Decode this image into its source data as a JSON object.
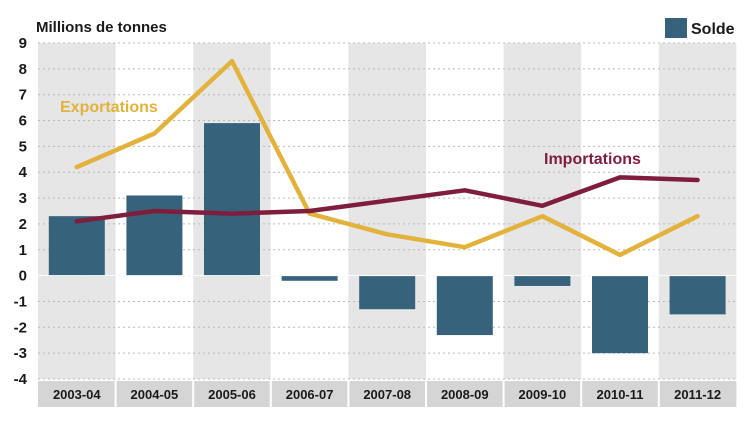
{
  "chart_data": {
    "type": "bar",
    "ylabel": "Millions de tonnes",
    "ylim": [
      -4,
      9
    ],
    "yticks": [
      9,
      8,
      7,
      6,
      5,
      4,
      3,
      2,
      1,
      0,
      -1,
      -2,
      -3,
      -4
    ],
    "categories": [
      "2003-04",
      "2004-05",
      "2005-06",
      "2006-07",
      "2007-08",
      "2008-09",
      "2009-10",
      "2010-11",
      "2011-12"
    ],
    "legend": {
      "label": "Solde",
      "position": "top-right"
    },
    "grid": "dotted-horizontal",
    "series": [
      {
        "name": "Solde",
        "type": "bar",
        "color": "#36637b",
        "values": [
          2.3,
          3.1,
          5.9,
          -0.2,
          -1.3,
          -2.3,
          -0.4,
          -3.0,
          -1.5
        ]
      },
      {
        "name": "Exportations",
        "type": "line",
        "color": "#e2b23c",
        "values": [
          4.2,
          5.5,
          8.3,
          2.4,
          1.6,
          1.1,
          2.3,
          0.8,
          2.3
        ]
      },
      {
        "name": "Importations",
        "type": "line",
        "color": "#7f1d3c",
        "values": [
          2.1,
          2.5,
          2.4,
          2.5,
          2.9,
          3.3,
          2.7,
          3.8,
          3.7
        ]
      }
    ]
  }
}
